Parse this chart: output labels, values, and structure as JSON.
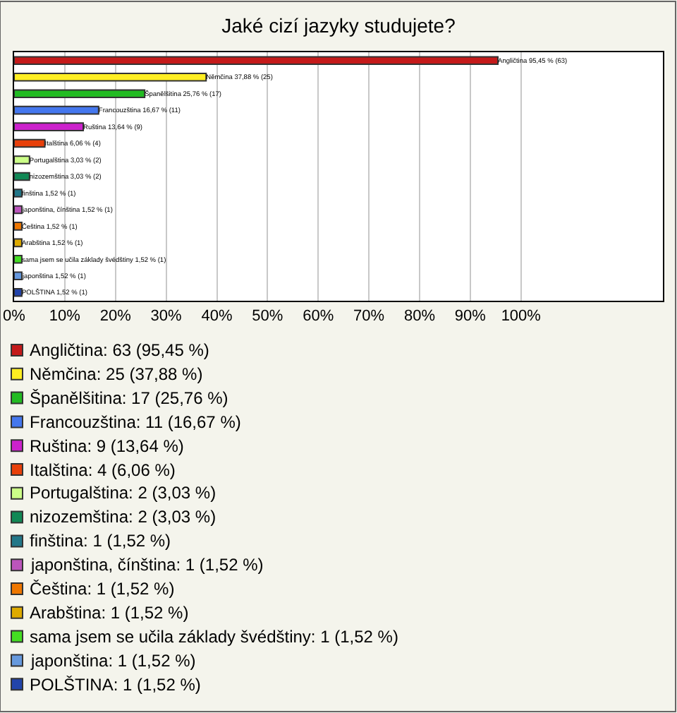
{
  "chart_data": {
    "type": "bar",
    "orientation": "horizontal",
    "title": "Jaké cizí jazyky studujete?",
    "categories": [
      "Angličtina",
      "Němčina",
      "Španělšitina",
      "Francouzština",
      "Ruština",
      "Italština",
      "Portugalština",
      "nizozemština",
      "finština",
      "japonština, čínština",
      "Čeština",
      "Arabština",
      "sama jsem se učila základy švédštiny",
      "japonština",
      "POLŠTINA"
    ],
    "values": [
      95.45,
      37.88,
      25.76,
      16.67,
      13.64,
      6.06,
      3.03,
      3.03,
      1.52,
      1.52,
      1.52,
      1.52,
      1.52,
      1.52,
      1.52
    ],
    "value_labels": [
      "95,45 % (63)",
      "37,88 % (25)",
      "25,76 % (17)",
      "16,67 % (11)",
      "13,64 % (9)",
      "6,06 % (4)",
      "3,03 % (2)",
      "3,03 % (2)",
      "1,52 % (1)",
      "1,52 % (1)",
      "1,52 % (1)",
      "1,52 % (1)",
      "1,52 % (1)",
      "1,52 % (1)",
      "1,52 % (1)"
    ],
    "colors": [
      "#c41a1a",
      "#ffee22",
      "#22bb22",
      "#4477ee",
      "#cc22cc",
      "#e8400a",
      "#ccff88",
      "#118855",
      "#227788",
      "#bb55bb",
      "#ee7700",
      "#ddaa00",
      "#44dd22",
      "#6699dd",
      "#2244aa"
    ],
    "xlim": [
      0,
      128
    ],
    "xticks": [
      {
        "value": 0,
        "label": "0%"
      },
      {
        "value": 10,
        "label": "10%"
      },
      {
        "value": 20,
        "label": "20%"
      },
      {
        "value": 30,
        "label": "30%"
      },
      {
        "value": 40,
        "label": "40%"
      },
      {
        "value": 50,
        "label": "50%"
      },
      {
        "value": 60,
        "label": "60%"
      },
      {
        "value": 70,
        "label": "70%"
      },
      {
        "value": 80,
        "label": "80%"
      },
      {
        "value": 90,
        "label": "90%"
      },
      {
        "value": 100,
        "label": "100%"
      }
    ],
    "grid": "x",
    "tick_labels": "x",
    "annotations": [
      "Angličtina: 63 (95,45 %)",
      "Němčina: 25 (37,88 %)",
      "Španělšitina: 17 (25,76 %)",
      "Francouzština: 11 (16,67 %)",
      "Ruština: 9 (13,64 %)",
      "Italština: 4 (6,06 %)",
      "Portugalština: 2 (3,03 %)",
      "nizozemština: 2 (3,03 %)",
      "finština: 1 (1,52 %)",
      "japonština, čínština: 1 (1,52 %)",
      "Čeština: 1 (1,52 %)",
      "Arabština: 1 (1,52 %)",
      "sama jsem se učila základy švédštiny: 1 (1,52 %)",
      "japonština: 1 (1,52 %)",
      "POLŠTINA: 1 (1,52 %)"
    ]
  }
}
